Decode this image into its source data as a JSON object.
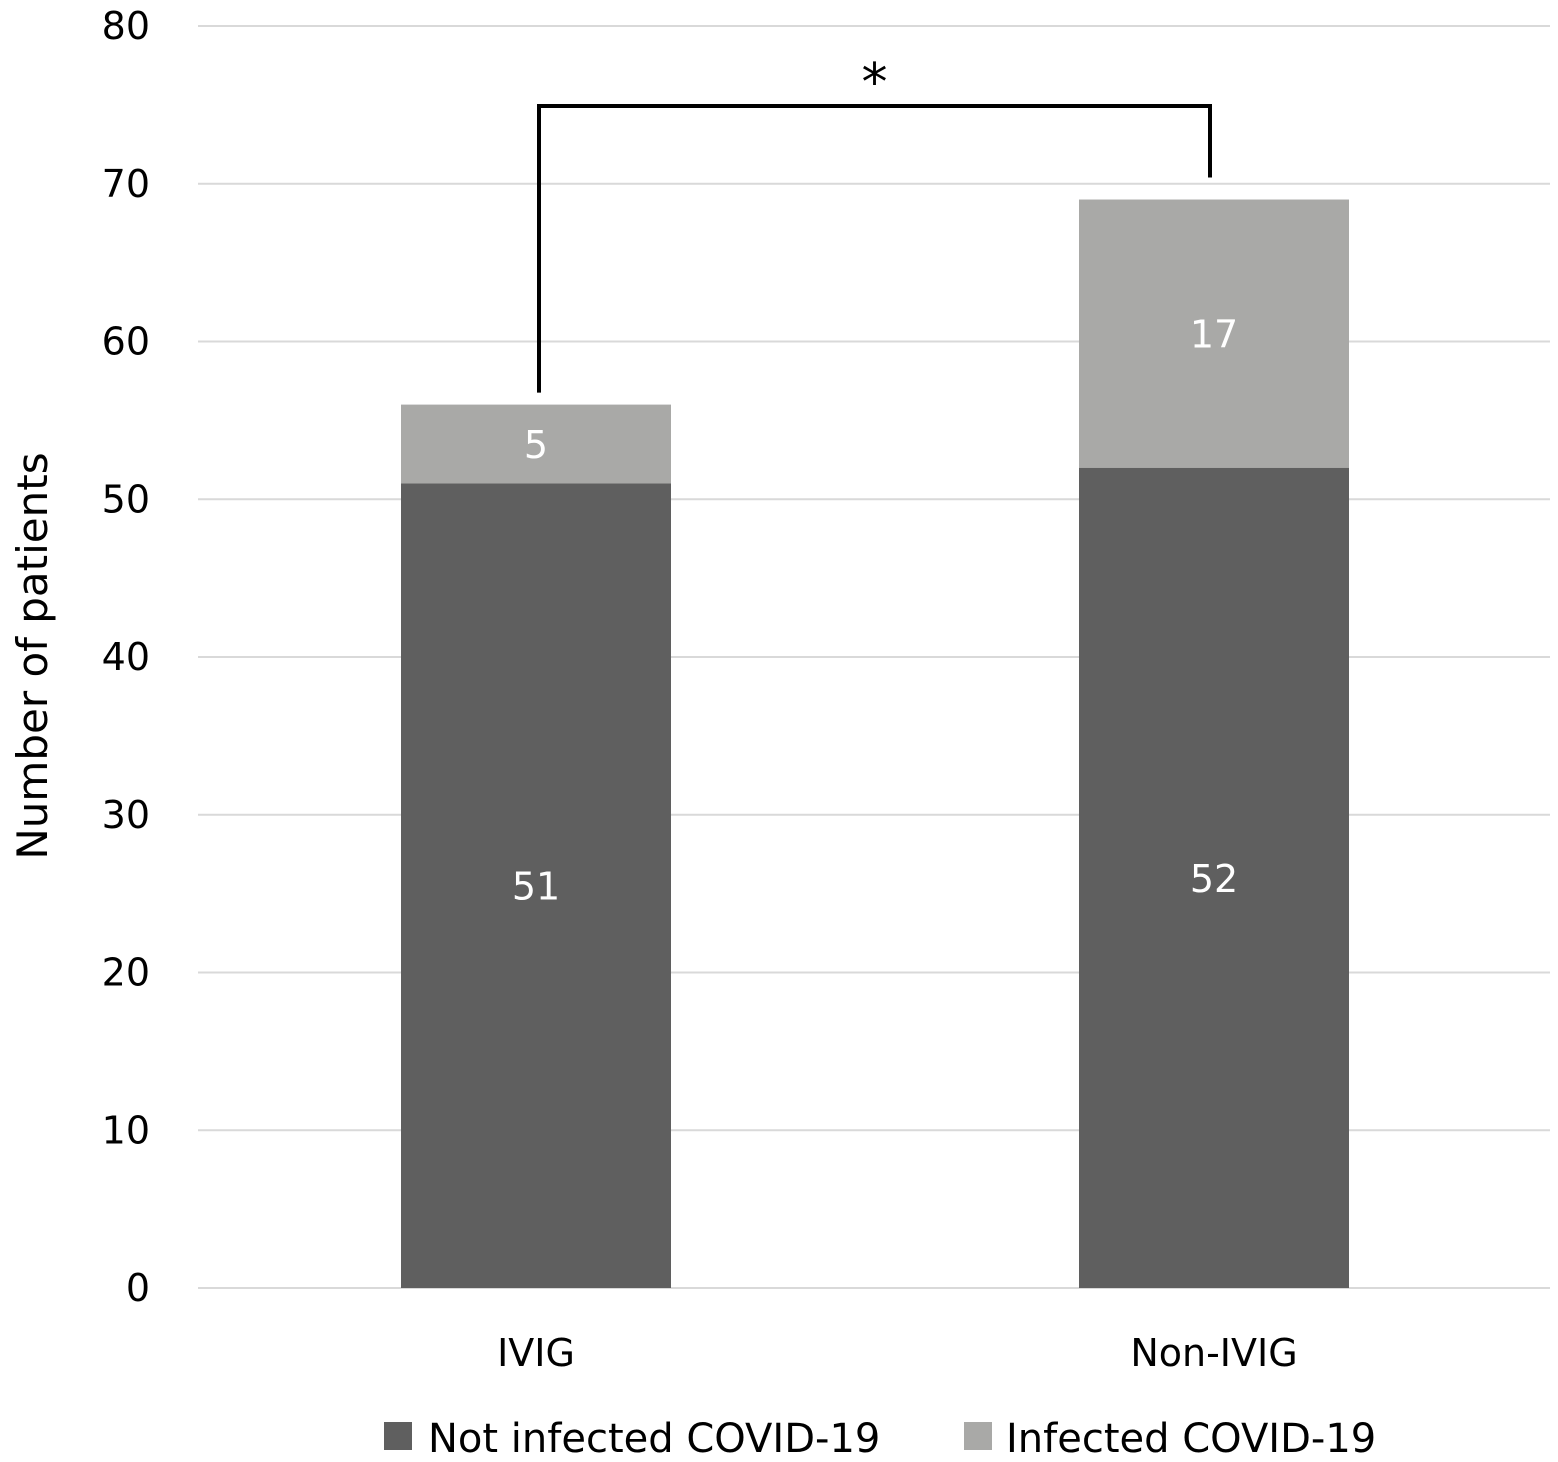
{
  "chart_data": {
    "type": "bar",
    "stacked": true,
    "title": "",
    "xlabel": "",
    "ylabel": "Number of patients",
    "ylim": [
      0,
      80
    ],
    "yticks": [
      0,
      10,
      20,
      30,
      40,
      50,
      60,
      70,
      80
    ],
    "grid": true,
    "categories": [
      "IVIG",
      "Non-IVIG"
    ],
    "series": [
      {
        "name": "Not infected COVID-19",
        "values": [
          51,
          52
        ],
        "color": "#5f5f5f"
      },
      {
        "name": "Infected COVID-19",
        "values": [
          5,
          17
        ],
        "color": "#a9a9a7"
      }
    ],
    "legend_position": "bottom",
    "annotation": {
      "text": "*",
      "type": "significance-bracket",
      "between": [
        "IVIG",
        "Non-IVIG"
      ]
    },
    "colors": {
      "grid": "#d9d9d9",
      "bracket": "#000000",
      "data_label": "#ffffff"
    }
  }
}
